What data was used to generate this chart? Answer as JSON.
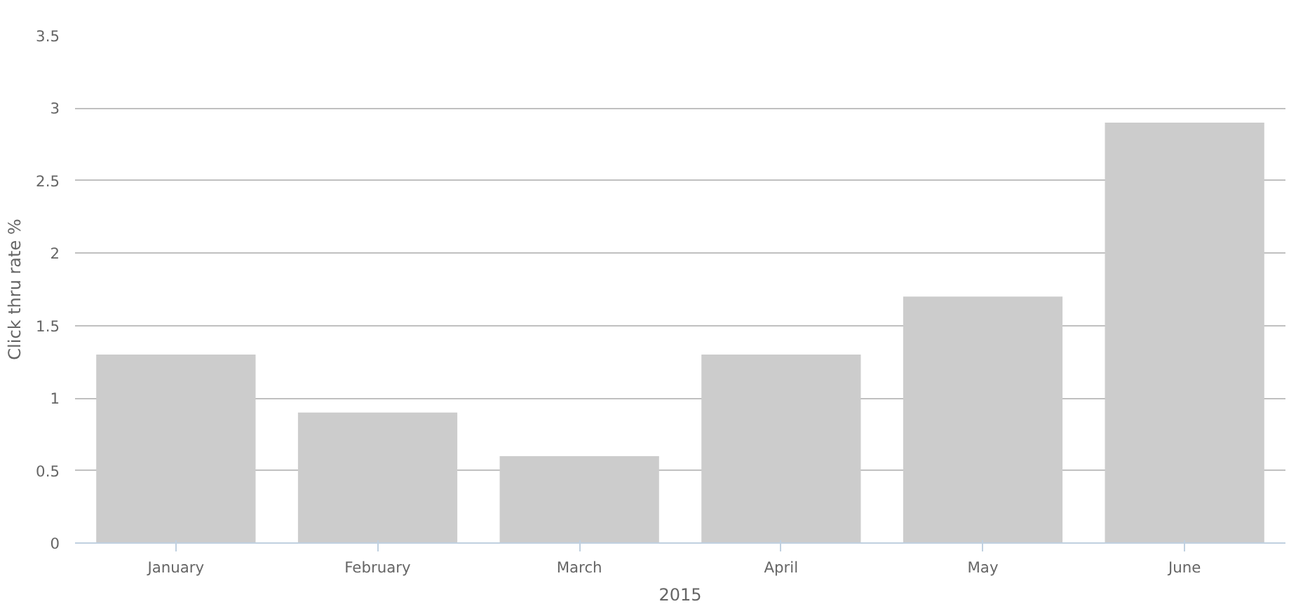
{
  "chart_data": {
    "type": "bar",
    "xlabel": "2015",
    "ylabel": "Click thru rate %",
    "categories": [
      "January",
      "February",
      "March",
      "April",
      "May",
      "June"
    ],
    "values": [
      1.3,
      0.9,
      0.6,
      1.3,
      1.7,
      2.9
    ],
    "color": "#cccccc",
    "ylim": [
      0,
      3.5
    ],
    "yticks": [
      0,
      0.5,
      1,
      1.5,
      2,
      2.5,
      3,
      3.5
    ],
    "grid": "y"
  }
}
